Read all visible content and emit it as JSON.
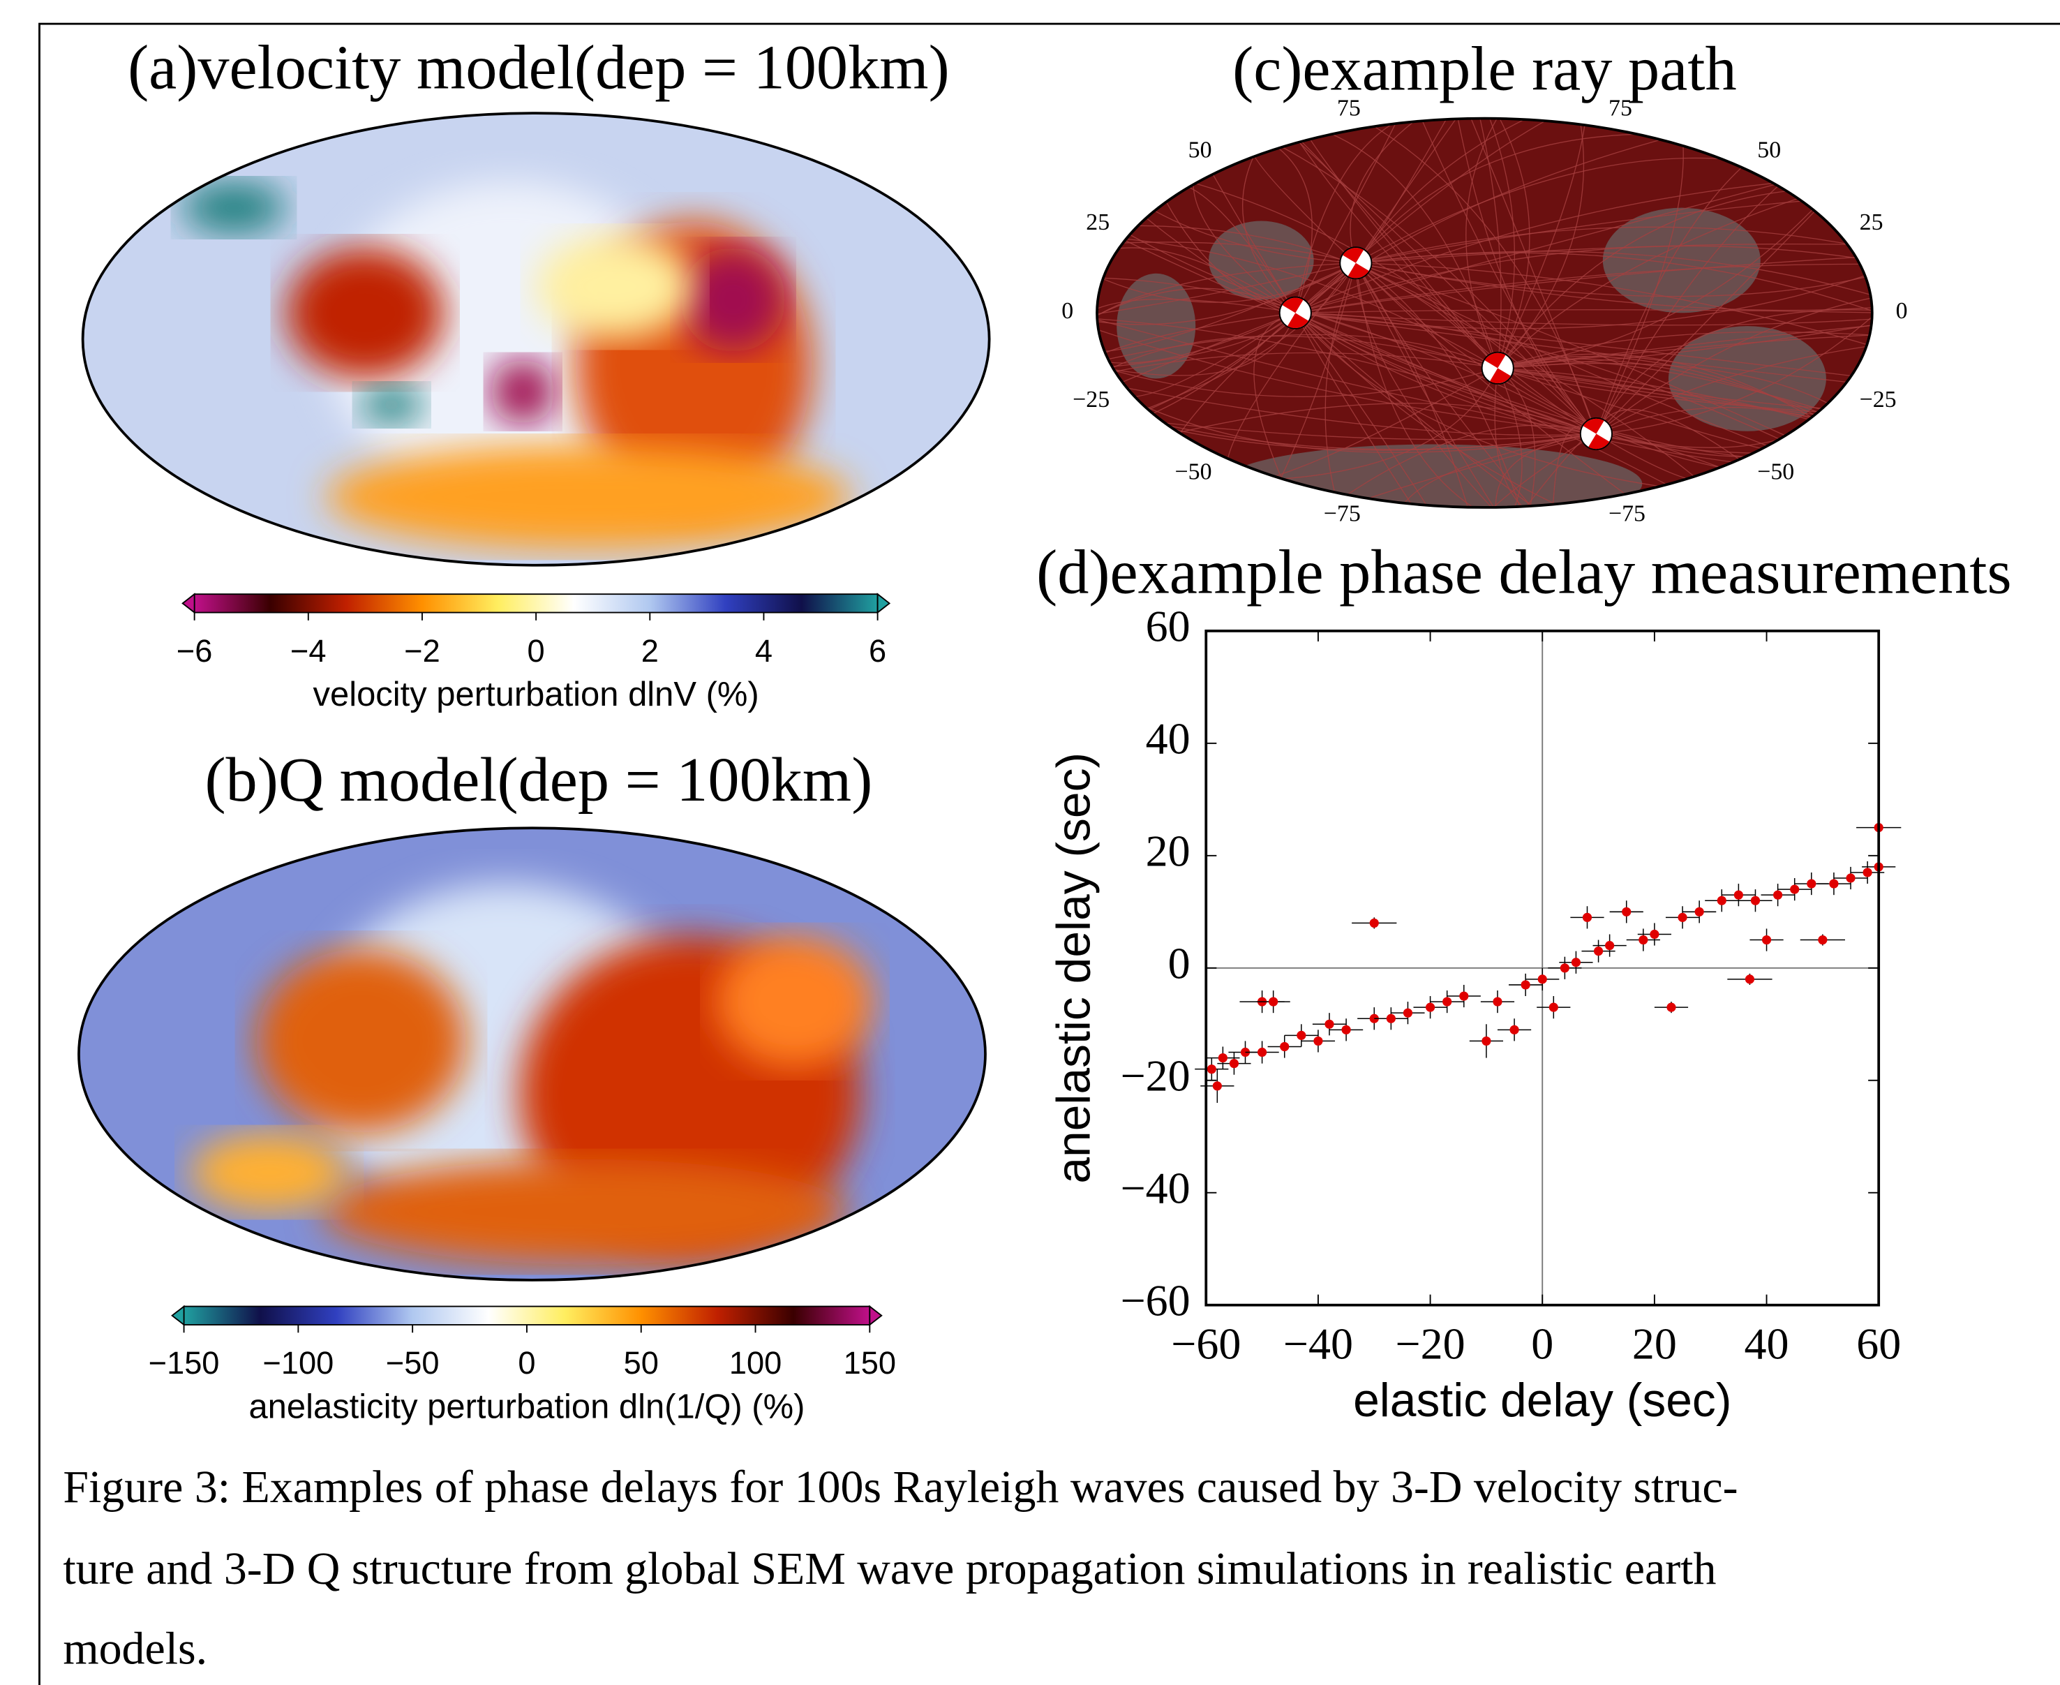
{
  "caption": [
    "Figure 3: Examples of phase delays for 100s Rayleigh waves caused by 3-D velocity struc-",
    "ture and 3-D Q structure from global SEM wave propagation simulations in realistic earth",
    "models."
  ],
  "chart_data": [
    {
      "type": "map",
      "title": "(a)velocity model(dep = 100km)"
    },
    {
      "type": "colorbar",
      "label": "velocity perturbation dlnV (%)",
      "xlim": [
        -6,
        6
      ],
      "xticks": [
        {
          "value": -6,
          "label": "−6"
        },
        {
          "value": -4,
          "label": "−4"
        },
        {
          "value": -2,
          "label": "−2"
        },
        0,
        2,
        4,
        6
      ],
      "colors": [
        "#c0108a",
        "#3a0000",
        "#c02000",
        "#ff9000",
        "#ffee60",
        "#ffffff",
        "#b0c8f0",
        "#3040c0",
        "#10104a",
        "#20a0a0"
      ]
    },
    {
      "type": "map",
      "title": "(b)Q model(dep = 100km)"
    },
    {
      "type": "colorbar",
      "label": "anelasticity perturbation dln(1/Q) (%)",
      "xlim": [
        -150,
        150
      ],
      "xticks": [
        {
          "value": -150,
          "label": "−150"
        },
        {
          "value": -100,
          "label": "−100"
        },
        {
          "value": -50,
          "label": "−50"
        },
        0,
        50,
        100,
        150
      ],
      "colors": [
        "#20a0a0",
        "#10104a",
        "#3040c0",
        "#b0c8f0",
        "#ffffff",
        "#ffee60",
        "#ff9000",
        "#c02000",
        "#3a0000",
        "#c0108a"
      ]
    },
    {
      "type": "raymap",
      "title": "(c)example ray path",
      "color": "#6b1010",
      "lat_ticks": [
        75,
        50,
        25,
        0,
        {
          "value": -25,
          "label": "−25"
        },
        {
          "value": -50,
          "label": "−50"
        },
        {
          "value": -75,
          "label": "−75"
        }
      ]
    },
    {
      "type": "scatter",
      "title": "(d)example phase delay measurements",
      "xlabel": "elastic delay (sec)",
      "ylabel": "anelastic delay (sec)",
      "xlim": [
        -60,
        60
      ],
      "ylim": [
        -60,
        60
      ],
      "color": "#e00000",
      "xticks": [
        {
          "value": -60,
          "label": "−60"
        },
        {
          "value": -40,
          "label": "−40"
        },
        {
          "value": -20,
          "label": "−20"
        },
        0,
        20,
        40,
        60
      ],
      "yticks": [
        {
          "value": -60,
          "label": "−60"
        },
        {
          "value": -40,
          "label": "−40"
        },
        {
          "value": -20,
          "label": "−20"
        },
        0,
        20,
        40,
        60
      ],
      "x": [
        -59,
        -58,
        -57,
        -55,
        -53,
        -50,
        -50,
        -48,
        -46,
        -43,
        -40,
        -38,
        -35,
        -30,
        -30,
        -27,
        -24,
        -20,
        -17,
        -14,
        -10,
        -8,
        -5,
        -3,
        0,
        2,
        4,
        6,
        8,
        10,
        12,
        15,
        18,
        20,
        23,
        25,
        28,
        32,
        35,
        37,
        38,
        40,
        42,
        45,
        48,
        50,
        52,
        55,
        58,
        60,
        60
      ],
      "y": [
        -18,
        -21,
        -16,
        -17,
        -15,
        -15,
        -6,
        -6,
        -14,
        -12,
        -13,
        -10,
        -11,
        -9,
        8,
        -9,
        -8,
        -7,
        -6,
        -5,
        -13,
        -6,
        -11,
        -3,
        -2,
        -7,
        0,
        1,
        9,
        3,
        4,
        10,
        5,
        6,
        -7,
        9,
        10,
        12,
        13,
        -2,
        12,
        5,
        13,
        14,
        15,
        5,
        15,
        16,
        17,
        25,
        18
      ],
      "xerr": [
        3,
        3,
        3,
        3,
        3,
        3,
        4,
        3,
        3,
        3,
        3,
        3,
        3,
        3,
        4,
        3,
        3,
        3,
        3,
        3,
        3,
        3,
        3,
        3,
        3,
        3,
        3,
        3,
        3,
        3,
        3,
        3,
        3,
        3,
        3,
        3,
        3,
        3,
        3,
        4,
        3,
        3,
        3,
        3,
        3,
        4,
        3,
        3,
        3,
        4,
        3
      ],
      "yerr": [
        2,
        3,
        2,
        2,
        2,
        2,
        2,
        2,
        2,
        2,
        2,
        2,
        2,
        2,
        1,
        2,
        2,
        2,
        2,
        2,
        3,
        2,
        2,
        2,
        2,
        2,
        2,
        2,
        2,
        2,
        2,
        2,
        2,
        2,
        1,
        2,
        2,
        2,
        2,
        1,
        2,
        2,
        2,
        2,
        2,
        1,
        2,
        2,
        2,
        4,
        2
      ]
    }
  ]
}
